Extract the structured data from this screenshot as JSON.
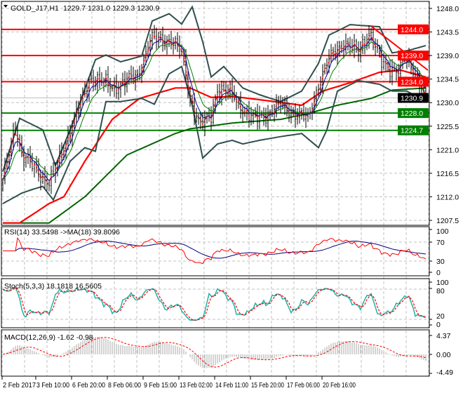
{
  "header": {
    "symbol": "GOLD_J17,H1",
    "ohlc": "1229.7 1231.0 1229.3 1230.9"
  },
  "chart_data": {
    "type": "line",
    "title": "GOLD_J17,H1 1229.7 1231.0 1229.3 1230.9",
    "bars_count": 202,
    "x_labels": [
      {
        "bar": 0,
        "label": "2 Feb 2017"
      },
      {
        "bar": 16,
        "label": "3 Feb 10:00"
      },
      {
        "bar": 33,
        "label": "6 Feb 20:00"
      },
      {
        "bar": 50,
        "label": "8 Feb 06:00"
      },
      {
        "bar": 67,
        "label": "9 Feb 15:00"
      },
      {
        "bar": 84,
        "label": "13 Feb 02:00"
      },
      {
        "bar": 101,
        "label": "14 Feb 11:00"
      },
      {
        "bar": 118,
        "label": "15 Feb 20:00"
      },
      {
        "bar": 135,
        "label": "17 Feb 06:00"
      },
      {
        "bar": 152,
        "label": "20 Feb 16:00"
      }
    ],
    "price_axis": {
      "ylim": [
        1207.5,
        1248.0
      ],
      "ticks": [
        "1248.0",
        "1243.5",
        "1239.0",
        "1234.5",
        "1230.0",
        "1225.5",
        "1221.0",
        "1216.5",
        "1212.0",
        "1207.5"
      ]
    },
    "levels": [
      {
        "price": 1244.0,
        "label": "1244.0",
        "color": "#ff0000"
      },
      {
        "price": 1239.0,
        "label": "1239.0",
        "color": "#ff0000"
      },
      {
        "price": 1234.0,
        "label": "1234.0",
        "color": "#ff0000"
      },
      {
        "price": 1228.0,
        "label": "1228.0",
        "color": "#008000"
      },
      {
        "price": 1224.7,
        "label": "1224.7",
        "color": "#008000"
      }
    ],
    "current_price": {
      "price": 1230.9,
      "label": "1230.9",
      "color": "#000000"
    },
    "trendline": [
      [
        175,
        1244.6
      ],
      [
        202,
        1236.2
      ]
    ],
    "close_keypoints": [
      [
        0,
        1214.7
      ],
      [
        6,
        1226
      ],
      [
        9,
        1220
      ],
      [
        22,
        1214.7
      ],
      [
        24,
        1216
      ],
      [
        32,
        1224.8
      ],
      [
        42,
        1234.9
      ],
      [
        52,
        1232.9
      ],
      [
        64,
        1235
      ],
      [
        70,
        1242
      ],
      [
        80,
        1242
      ],
      [
        85,
        1239.5
      ],
      [
        89,
        1231
      ],
      [
        94,
        1225.5
      ],
      [
        99,
        1227.5
      ],
      [
        102,
        1232.8
      ],
      [
        109,
        1231.5
      ],
      [
        114,
        1228.8
      ],
      [
        119,
        1226.8
      ],
      [
        126,
        1228
      ],
      [
        132,
        1229.5
      ],
      [
        139,
        1228
      ],
      [
        145,
        1226.8
      ],
      [
        150,
        1233.5
      ],
      [
        155,
        1238.2
      ],
      [
        162,
        1241.6
      ],
      [
        169,
        1239.5
      ],
      [
        174,
        1243.6
      ],
      [
        180,
        1237.5
      ],
      [
        187,
        1236.2
      ],
      [
        192,
        1238.2
      ],
      [
        197,
        1234.9
      ],
      [
        201,
        1230.9
      ]
    ],
    "ma_slow_keypoints": [
      [
        8,
        1207
      ],
      [
        22,
        1210.7
      ],
      [
        29,
        1212
      ],
      [
        39,
        1218.8
      ],
      [
        52,
        1226.8
      ],
      [
        65,
        1230.8
      ],
      [
        82,
        1232.8
      ],
      [
        89,
        1232.8
      ],
      [
        99,
        1231
      ],
      [
        109,
        1231.2
      ],
      [
        125,
        1230.4
      ],
      [
        142,
        1229.5
      ],
      [
        152,
        1232.2
      ],
      [
        165,
        1233.8
      ],
      [
        179,
        1235.8
      ],
      [
        189,
        1236.2
      ],
      [
        201,
        1234.9
      ]
    ],
    "ma_long_keypoints": [
      [
        22,
        1207
      ],
      [
        39,
        1212
      ],
      [
        59,
        1220
      ],
      [
        82,
        1224.1
      ],
      [
        89,
        1225
      ],
      [
        109,
        1226.1
      ],
      [
        132,
        1226.8
      ],
      [
        145,
        1227.9
      ],
      [
        159,
        1229.5
      ],
      [
        175,
        1230.8
      ],
      [
        185,
        1232.4
      ],
      [
        201,
        1232.8
      ]
    ],
    "bb_upper_keypoints": [
      [
        0,
        1216.8
      ],
      [
        8,
        1227
      ],
      [
        19,
        1224.8
      ],
      [
        25,
        1218
      ],
      [
        32,
        1224.8
      ],
      [
        44,
        1238.2
      ],
      [
        49,
        1239.1
      ],
      [
        56,
        1237.8
      ],
      [
        66,
        1238.9
      ],
      [
        71,
        1245.6
      ],
      [
        79,
        1247
      ],
      [
        85,
        1245
      ],
      [
        90,
        1248.3
      ],
      [
        95,
        1241.6
      ],
      [
        99,
        1234.9
      ],
      [
        105,
        1236.9
      ],
      [
        114,
        1232.8
      ],
      [
        122,
        1231.5
      ],
      [
        132,
        1230.2
      ],
      [
        142,
        1232.2
      ],
      [
        150,
        1237.5
      ],
      [
        155,
        1242.9
      ],
      [
        165,
        1244.9
      ],
      [
        179,
        1244.5
      ],
      [
        185,
        1239.5
      ],
      [
        193,
        1240
      ],
      [
        201,
        1240.9
      ]
    ],
    "bb_lower_keypoints": [
      [
        0,
        1210.7
      ],
      [
        9,
        1212.7
      ],
      [
        14,
        1213.4
      ],
      [
        19,
        1214
      ],
      [
        24,
        1211.4
      ],
      [
        32,
        1218.8
      ],
      [
        39,
        1221.4
      ],
      [
        44,
        1220.7
      ],
      [
        49,
        1230.2
      ],
      [
        56,
        1230.2
      ],
      [
        66,
        1230.8
      ],
      [
        72,
        1229.7
      ],
      [
        79,
        1235.5
      ],
      [
        85,
        1236.9
      ],
      [
        90,
        1229.5
      ],
      [
        95,
        1219.4
      ],
      [
        102,
        1222.1
      ],
      [
        109,
        1222.8
      ],
      [
        114,
        1222.1
      ],
      [
        122,
        1222.8
      ],
      [
        132,
        1223.5
      ],
      [
        142,
        1224.1
      ],
      [
        150,
        1221.4
      ],
      [
        154,
        1224.8
      ],
      [
        159,
        1232.2
      ],
      [
        169,
        1234.2
      ],
      [
        179,
        1233.5
      ],
      [
        185,
        1232.2
      ],
      [
        192,
        1232.2
      ],
      [
        201,
        1230.2
      ]
    ],
    "rsi": {
      "label": "RSI(14) 33.5498  ->MA(18) 39.8096",
      "ticks": [
        "100",
        "70",
        "30",
        "0"
      ],
      "ylim": [
        0,
        100
      ]
    },
    "stoch": {
      "label": "Stoch(5,3,3) 18.1818 16.5605",
      "ticks": [
        "100",
        "80",
        "20",
        "0"
      ],
      "ylim": [
        0,
        100
      ]
    },
    "macd": {
      "label": "MACD(12,26,9) -1.62 -0.98",
      "ticks": [
        "4.37",
        "0.00",
        "-4.49"
      ],
      "ylim": [
        -4.49,
        4.37
      ]
    },
    "colors": {
      "bars": "#000000",
      "ema_fast": "#ff0000",
      "ema_mid": "#0000a0",
      "ema_slow": "#008000",
      "ma_slow": "#ff0000",
      "ma_long": "#006400",
      "bands": "#2f4f4f",
      "rsi": "#ff0000",
      "rsi_ma": "#000080",
      "stoch_main": "#20b2aa",
      "stoch_signal": "#ff0000",
      "macd_hist": "#a9a9a9",
      "macd_signal": "#ff0000",
      "grid": "#c0c0c0"
    }
  }
}
